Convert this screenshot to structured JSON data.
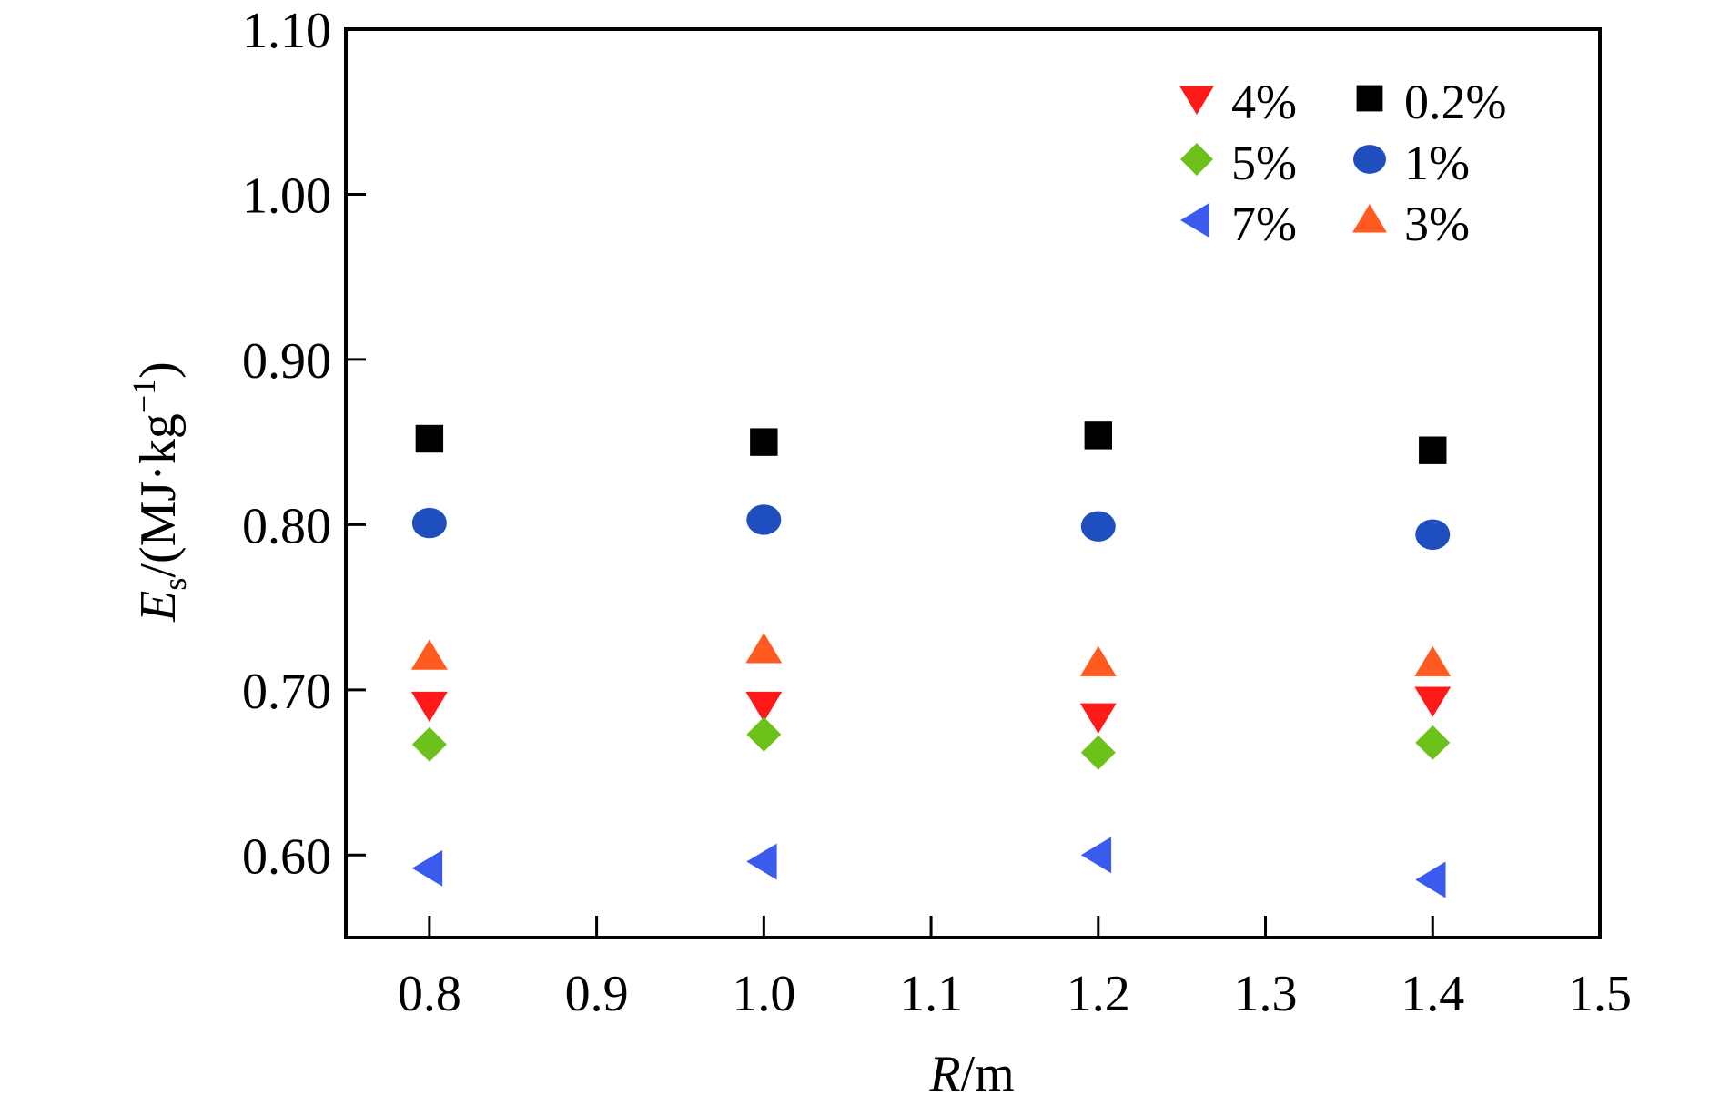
{
  "chart_data": {
    "type": "scatter",
    "title": "",
    "xlabel": {
      "var": "R",
      "unit": "m"
    },
    "ylabel": {
      "var": "E",
      "sub": "s",
      "unit_a": "(MJ·kg",
      "sup": "−1",
      "unit_b": ")"
    },
    "xlim": [
      0.75,
      1.5
    ],
    "ylim": [
      0.55,
      1.1
    ],
    "xticks": [
      "0.8",
      "0.9",
      "1.0",
      "1.1",
      "1.2",
      "1.3",
      "1.4",
      "1.5"
    ],
    "yticks": [
      "0.60",
      "0.70",
      "0.80",
      "0.90",
      "1.00",
      "1.10"
    ],
    "x": [
      0.8,
      1.0,
      1.2,
      1.4
    ],
    "grid": false,
    "legend_position": "top-right",
    "series": [
      {
        "name": "0.2%",
        "marker": "square",
        "color": "#000000",
        "values": [
          0.852,
          0.85,
          0.854,
          0.845
        ]
      },
      {
        "name": "1%",
        "marker": "circle",
        "color": "#1f4fbf",
        "values": [
          0.801,
          0.803,
          0.799,
          0.794
        ]
      },
      {
        "name": "3%",
        "marker": "triangle-up",
        "color": "#ff5a1f",
        "values": [
          0.72,
          0.724,
          0.716,
          0.716
        ]
      },
      {
        "name": "4%",
        "marker": "triangle-down",
        "color": "#ff1a1a",
        "values": [
          0.691,
          0.691,
          0.684,
          0.694
        ]
      },
      {
        "name": "5%",
        "marker": "diamond",
        "color": "#6cc21a",
        "values": [
          0.667,
          0.673,
          0.662,
          0.668
        ]
      },
      {
        "name": "7%",
        "marker": "triangle-left",
        "color": "#3b5bef",
        "values": [
          0.592,
          0.596,
          0.6,
          0.585
        ]
      }
    ],
    "legend_order": [
      "4%",
      "0.2%",
      "5%",
      "1%",
      "7%",
      "3%"
    ]
  }
}
